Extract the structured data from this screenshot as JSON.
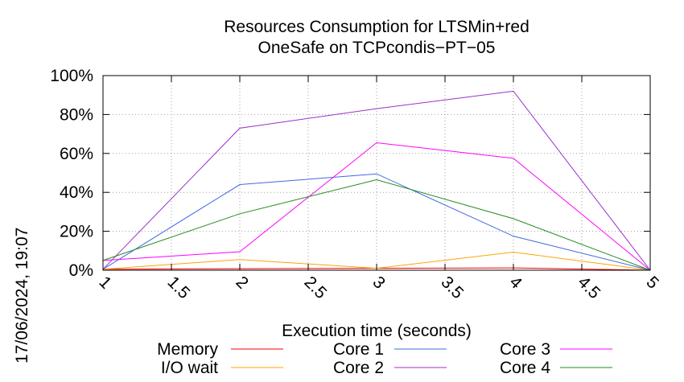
{
  "chart_data": {
    "type": "line",
    "title": [
      "Resources Consumption for LTSMin+red",
      "OneSafe on TCPcondis−PT−05"
    ],
    "xlabel": "Execution time (seconds)",
    "ylabel": "",
    "timestamp": "17/06/2024, 19:07",
    "xlim": [
      1,
      5
    ],
    "ylim": [
      0,
      100
    ],
    "x_ticks": [
      "1",
      "1.5",
      "2",
      "2.5",
      "3",
      "3.5",
      "4",
      "4.5",
      "5"
    ],
    "y_ticks": [
      "0%",
      "20%",
      "40%",
      "60%",
      "80%",
      "100%"
    ],
    "grid": true,
    "x": [
      1,
      2,
      3,
      4,
      5
    ],
    "series": [
      {
        "name": "Memory",
        "color": "#ff0000",
        "values": [
          0.5,
          0.8,
          1.0,
          1.2,
          0
        ]
      },
      {
        "name": "I/O wait",
        "color": "#ffa500",
        "values": [
          0.5,
          5.5,
          1.0,
          9.3,
          0
        ]
      },
      {
        "name": "Core 1",
        "color": "#4169e1",
        "values": [
          0.5,
          44.0,
          49.5,
          17.5,
          0
        ]
      },
      {
        "name": "Core 2",
        "color": "#9932cc",
        "values": [
          0.5,
          73.0,
          83.0,
          92.0,
          0
        ]
      },
      {
        "name": "Core 3",
        "color": "#ff00ff",
        "values": [
          5.0,
          9.5,
          65.5,
          57.5,
          0
        ]
      },
      {
        "name": "Core 4",
        "color": "#228b22",
        "values": [
          5.0,
          29.0,
          46.5,
          26.5,
          0
        ]
      }
    ],
    "legend_position": "bottom"
  }
}
